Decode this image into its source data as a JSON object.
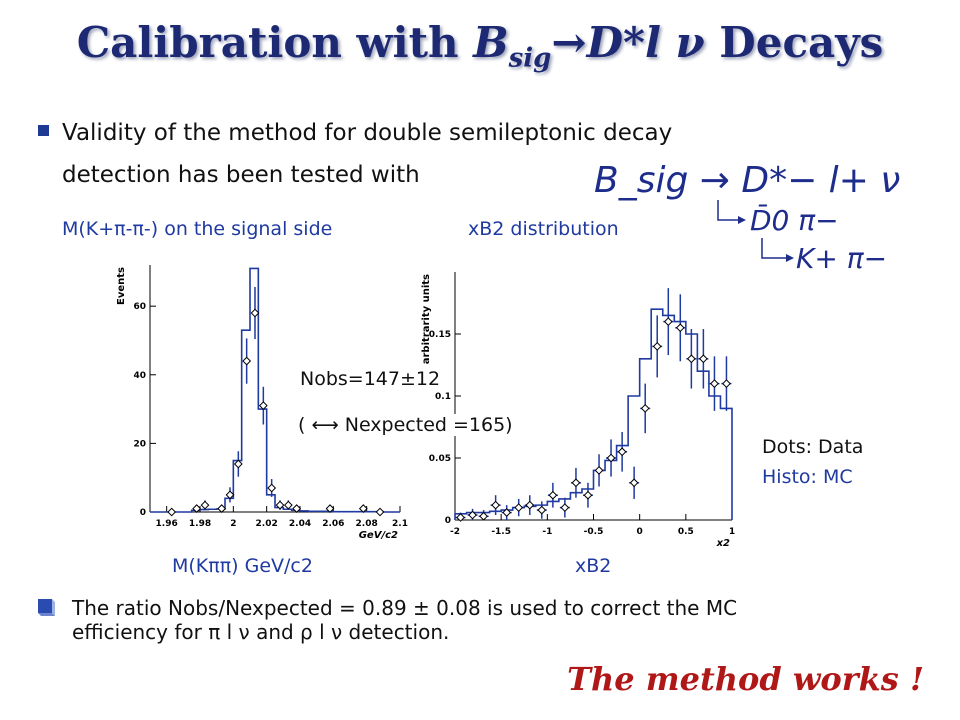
{
  "title": {
    "prefix": "Calibration with ",
    "B": "B",
    "sub": "sig",
    "arrow_part": "→D*l ν",
    "suffix": " Decays"
  },
  "intro": {
    "line1": "Validity of the method for double semileptonic decay",
    "line2": "detection has been tested with"
  },
  "decay_chain": {
    "main": "B_sig → D*− l+ ν",
    "step1": "D̄0 π−",
    "step2": "K+ π−"
  },
  "labels": {
    "left_top": "M(K+π-π-) on the signal side",
    "right_top": "xB2 distribution",
    "left_bottom": "M(Kππ) GeV/c2",
    "right_bottom": "xB2"
  },
  "annotation": {
    "nobs": "Nobs=147±12",
    "nexp": "(  ⟷  Nexpected =165)"
  },
  "legend": {
    "dots": "Dots: Data",
    "histo": "Histo: MC",
    "histo_color": "#1f3aa0"
  },
  "ratio_text": {
    "line1": "The ratio Nobs/Nexpected = 0.89 ± 0.08 is used to correct the MC",
    "line2": "efficiency for π l ν and ρ l ν  detection."
  },
  "conclusion": "The method works !",
  "chart_data": [
    {
      "type": "bar",
      "xlabel": "GeV/c2",
      "ylabel": "Events",
      "xlim": [
        1.95,
        2.1
      ],
      "ylim": [
        0,
        72
      ],
      "x_ticks": [
        "1.96",
        "1.98",
        "2",
        "2.02",
        "2.04",
        "2.06",
        "2.08",
        "2.1"
      ],
      "y_ticks": [
        "0",
        "20",
        "40",
        "60"
      ],
      "series": [
        {
          "name": "MC",
          "bin_edges": [
            1.95,
            1.955,
            1.96,
            1.965,
            1.97,
            1.975,
            1.98,
            1.985,
            1.99,
            1.995,
            2.0,
            2.005,
            2.01,
            2.015,
            2.02,
            2.025,
            2.03,
            2.035,
            2.04,
            2.045,
            2.05,
            2.055,
            2.06,
            2.065,
            2.07,
            2.075,
            2.08,
            2.085,
            2.09,
            2.095,
            2.1
          ],
          "values": [
            0,
            0,
            0,
            0,
            0,
            0.5,
            0.7,
            0.8,
            0.9,
            4,
            15,
            53,
            71,
            30,
            5,
            1.3,
            0.8,
            0.5,
            0.3,
            0.2,
            0.2,
            0.2,
            0.1,
            0.1,
            0.1,
            0.1,
            0.1,
            0.1,
            0,
            0
          ]
        },
        {
          "name": "Data",
          "x": [
            1.963,
            1.978,
            1.983,
            1.993,
            1.998,
            2.003,
            2.008,
            2.013,
            2.018,
            2.023,
            2.028,
            2.033,
            2.038,
            2.058,
            2.078,
            2.088
          ],
          "y": [
            0,
            1,
            2,
            1,
            5,
            14,
            44,
            58,
            31,
            7,
            2,
            2,
            1,
            1,
            1,
            0
          ],
          "err": [
            0.5,
            1,
            1.4,
            1,
            2.2,
            3.7,
            6.6,
            7.6,
            5.5,
            2.6,
            1.4,
            1.4,
            1,
            1,
            1,
            0.5
          ]
        }
      ]
    },
    {
      "type": "bar",
      "xlabel": "x2",
      "ylabel": "arbitrarity units",
      "xlim": [
        -2,
        1
      ],
      "ylim": [
        0,
        0.2
      ],
      "x_ticks": [
        "-2",
        "-1.5",
        "-1",
        "-0.5",
        "0",
        "0.5",
        "1"
      ],
      "y_ticks": [
        "0",
        "0.05",
        "0.1",
        "0.15"
      ],
      "series": [
        {
          "name": "MC",
          "bin_edges": [
            -2,
            -1.875,
            -1.75,
            -1.625,
            -1.5,
            -1.375,
            -1.25,
            -1.125,
            -1,
            -0.875,
            -0.75,
            -0.625,
            -0.5,
            -0.375,
            -0.25,
            -0.125,
            0,
            0.125,
            0.25,
            0.375,
            0.5,
            0.625,
            0.75,
            0.875,
            1
          ],
          "values": [
            0.005,
            0.006,
            0.006,
            0.007,
            0.008,
            0.01,
            0.011,
            0.012,
            0.015,
            0.017,
            0.022,
            0.025,
            0.04,
            0.048,
            0.06,
            0.1,
            0.13,
            0.17,
            0.165,
            0.16,
            0.15,
            0.12,
            0.1,
            0.09
          ]
        },
        {
          "name": "Data",
          "x": [
            -1.94,
            -1.81,
            -1.69,
            -1.56,
            -1.44,
            -1.31,
            -1.19,
            -1.06,
            -0.94,
            -0.81,
            -0.69,
            -0.56,
            -0.44,
            -0.31,
            -0.19,
            -0.06,
            0.06,
            0.19,
            0.31,
            0.44,
            0.56,
            0.69,
            0.81,
            0.94
          ],
          "y": [
            0.002,
            0.004,
            0.003,
            0.012,
            0.006,
            0.01,
            0.012,
            0.008,
            0.02,
            0.01,
            0.03,
            0.02,
            0.04,
            0.05,
            0.055,
            0.03,
            0.09,
            0.14,
            0.16,
            0.155,
            0.13,
            0.13,
            0.11,
            0.11
          ],
          "err": [
            0.004,
            0.005,
            0.005,
            0.008,
            0.006,
            0.007,
            0.008,
            0.007,
            0.01,
            0.008,
            0.012,
            0.01,
            0.013,
            0.015,
            0.016,
            0.013,
            0.02,
            0.025,
            0.027,
            0.027,
            0.024,
            0.024,
            0.022,
            0.022
          ]
        }
      ]
    }
  ]
}
